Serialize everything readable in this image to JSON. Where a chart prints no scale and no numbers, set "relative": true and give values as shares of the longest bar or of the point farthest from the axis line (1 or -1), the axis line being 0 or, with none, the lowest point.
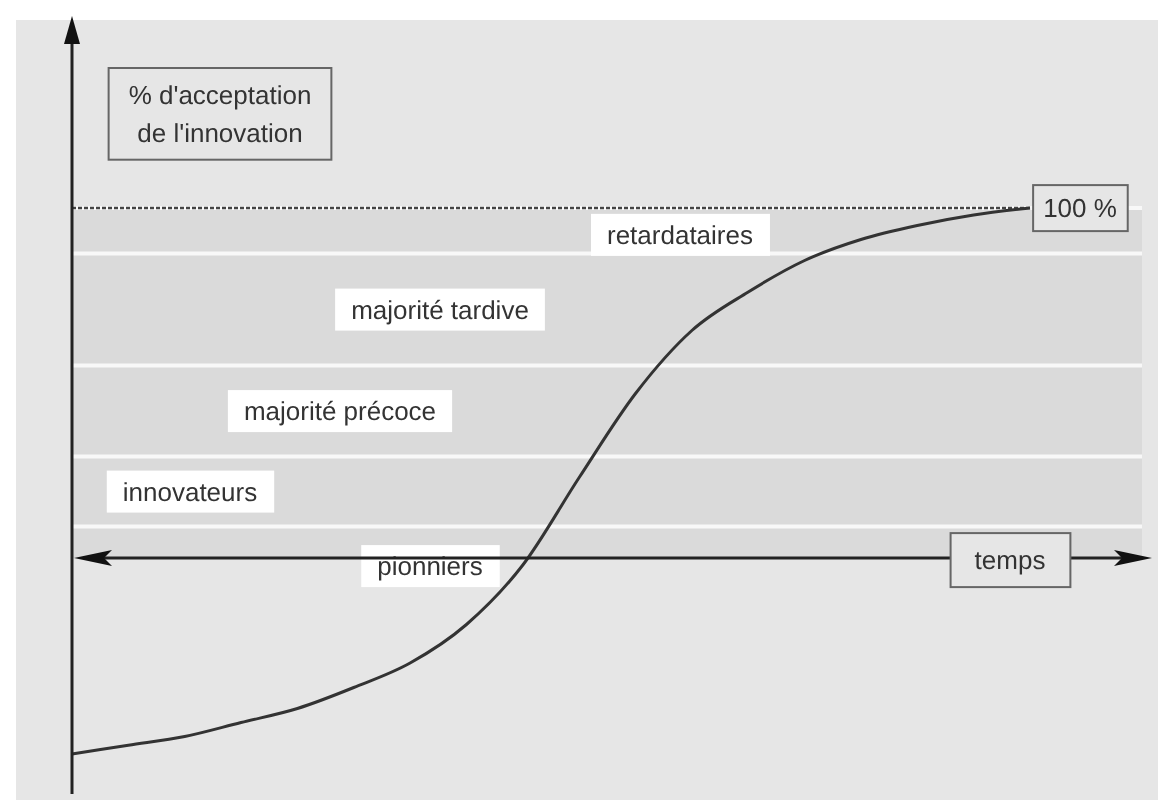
{
  "chart_data": {
    "type": "line",
    "relative": true,
    "xlabel": "temps",
    "ylabel": "% d'acceptation\nde l'innovation",
    "categories": [
      null,
      null,
      null,
      null,
      null,
      null,
      null,
      null,
      null,
      null,
      null,
      null,
      null,
      null,
      null,
      null,
      null,
      null
    ],
    "series": [
      {
        "color": "#333333",
        "values": [
          -0.56,
          -0.535,
          -0.51,
          -0.47,
          -0.43,
          -0.37,
          -0.3,
          -0.19,
          -0.02,
          0.23,
          0.47,
          0.65,
          0.76,
          0.85,
          0.91,
          0.95,
          0.98,
          1
        ]
      }
    ],
    "ref_lines": [
      {
        "axis": "y",
        "value": 1,
        "label": "100 %",
        "color": "#444444",
        "line_style": "dotted"
      }
    ],
    "bands": [
      {
        "axis": "y",
        "from": 0.87,
        "to": 1,
        "label": "retardataires",
        "color": "#dadada"
      },
      {
        "axis": "y",
        "from": 0.55,
        "to": 0.87,
        "label": "majorité tardive",
        "color": "#dadada"
      },
      {
        "axis": "y",
        "from": 0.29,
        "to": 0.55,
        "label": "majorité précoce",
        "color": "#dadada"
      },
      {
        "axis": "y",
        "from": 0.09,
        "to": 0.29,
        "label": "innovateurs",
        "color": "#dadada"
      },
      {
        "axis": "y",
        "from": 0,
        "to": 0.09,
        "label": "pionniers",
        "color": "#dadada"
      }
    ],
    "marker": "none",
    "line_style": "solid"
  }
}
